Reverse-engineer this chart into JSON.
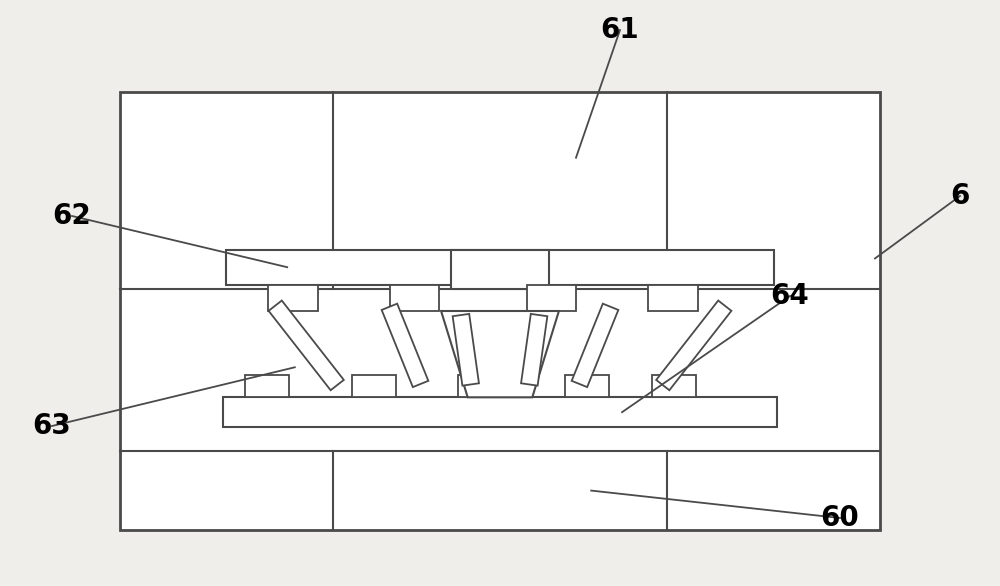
{
  "bg_color": "#f0eeeb",
  "line_color": "#4a4a4a",
  "fill_color": "#ffffff",
  "line_width": 1.5,
  "label_fontsize": 20
}
